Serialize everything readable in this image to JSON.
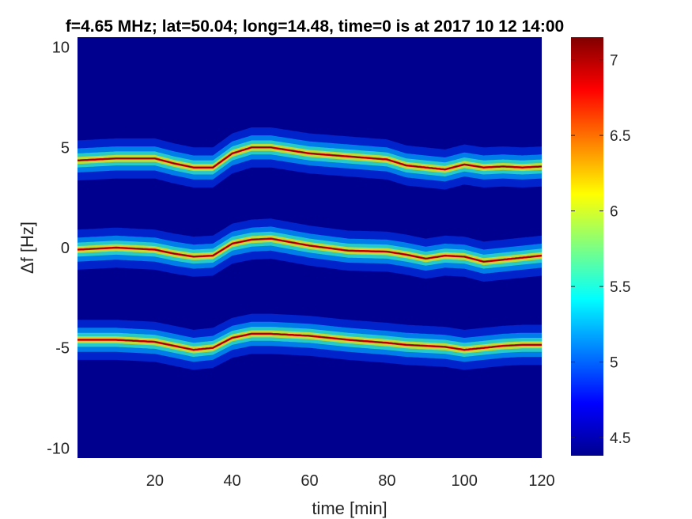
{
  "chart_data": {
    "type": "heatmap",
    "title": "f=4.65 MHz;  lat=50.04; long=14.48, time=0 is at 2017 10 12 14:00",
    "xlabel": "time [min]",
    "ylabel": "Δf [Hz]",
    "xlim": [
      0,
      120
    ],
    "ylim": [
      -10.5,
      10.5
    ],
    "x_ticks": [
      20,
      40,
      60,
      80,
      100,
      120
    ],
    "y_ticks": [
      -10,
      -5,
      0,
      5,
      10
    ],
    "colorbar": {
      "range": [
        4.38,
        7.15
      ],
      "ticks": [
        4.5,
        5,
        5.5,
        6,
        6.5,
        7
      ],
      "colormap": "jet"
    },
    "background_color": "#00008f",
    "series": [
      {
        "offset": 4.5,
        "x": [
          0,
          10,
          20,
          25,
          30,
          35,
          40,
          45,
          50,
          60,
          70,
          80,
          85,
          90,
          95,
          100,
          105,
          110,
          115,
          120
        ],
        "y": [
          4.35,
          4.45,
          4.45,
          4.2,
          4.0,
          4.0,
          4.7,
          5.0,
          5.0,
          4.7,
          4.55,
          4.4,
          4.1,
          4.0,
          3.9,
          4.15,
          4.0,
          4.05,
          4.0,
          4.05
        ]
      },
      {
        "offset": 0,
        "x": [
          0,
          10,
          20,
          25,
          30,
          35,
          40,
          45,
          50,
          60,
          70,
          80,
          85,
          90,
          95,
          100,
          105,
          110,
          115,
          120
        ],
        "y": [
          -0.1,
          0.0,
          -0.1,
          -0.3,
          -0.45,
          -0.4,
          0.2,
          0.4,
          0.45,
          0.1,
          -0.15,
          -0.2,
          -0.35,
          -0.55,
          -0.4,
          -0.45,
          -0.7,
          -0.6,
          -0.5,
          -0.4
        ]
      },
      {
        "offset": -4.5,
        "x": [
          0,
          10,
          20,
          25,
          30,
          35,
          40,
          45,
          50,
          60,
          70,
          80,
          85,
          90,
          95,
          100,
          105,
          110,
          115,
          120
        ],
        "y": [
          -4.6,
          -4.6,
          -4.7,
          -4.9,
          -5.1,
          -5.0,
          -4.5,
          -4.3,
          -4.3,
          -4.4,
          -4.6,
          -4.75,
          -4.85,
          -4.9,
          -4.95,
          -5.1,
          -5.0,
          -4.9,
          -4.85,
          -4.85
        ]
      }
    ]
  }
}
